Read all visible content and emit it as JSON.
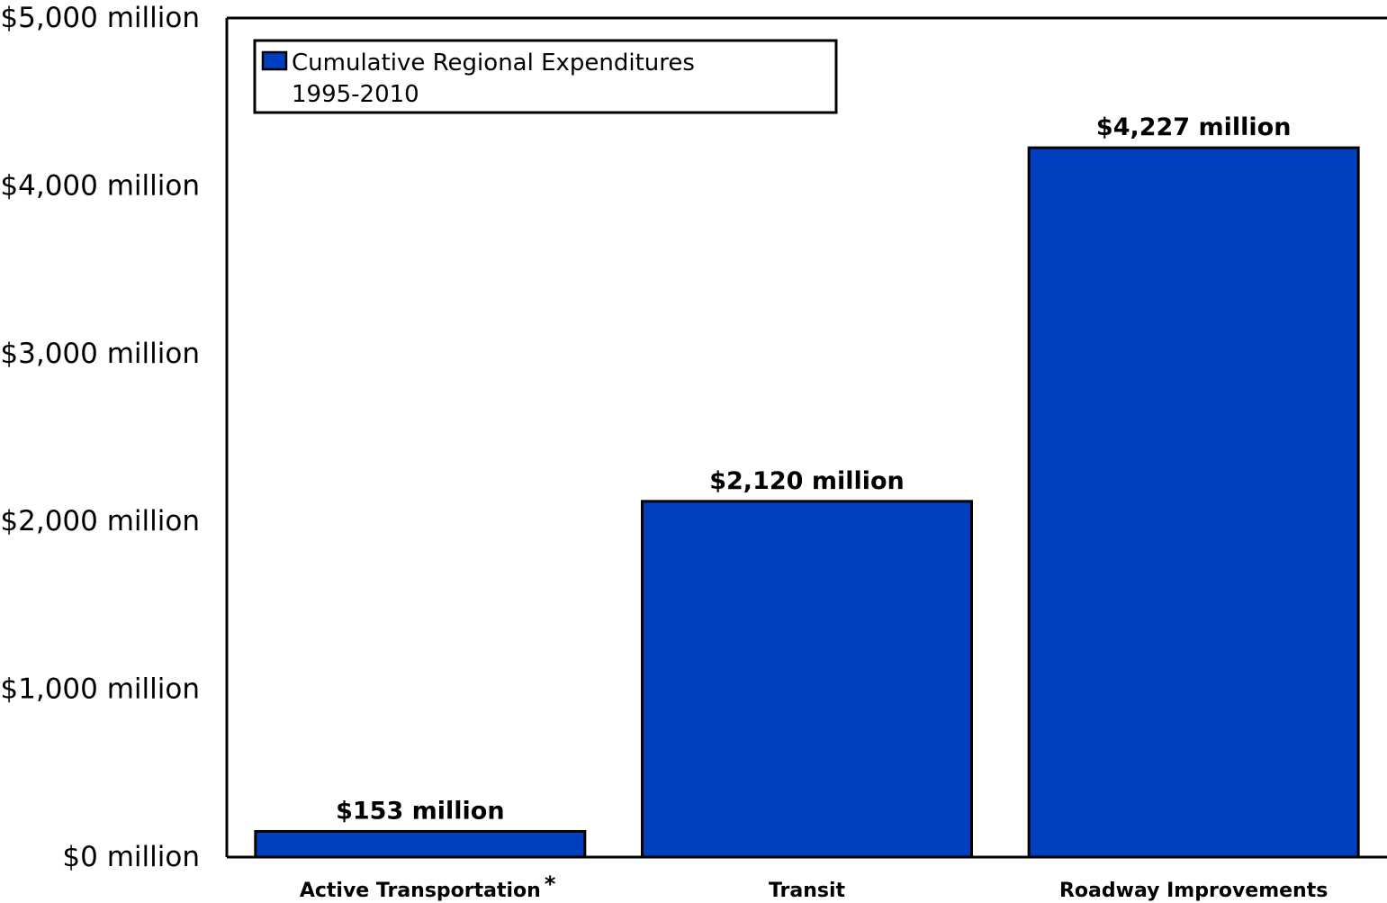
{
  "chart_data": {
    "type": "bar",
    "categories": [
      "Active Transportation",
      "Transit",
      "Roadway Improvements"
    ],
    "category_footnote_marks": [
      "*",
      "",
      ""
    ],
    "series": [
      {
        "name": "Cumulative Regional Expenditures 1995-2010",
        "values": [
          153,
          2120,
          4227
        ],
        "color": "#0040C0"
      }
    ],
    "data_labels": [
      "$153 million",
      "$2,120 million",
      "$4,227 million"
    ],
    "y_ticks": [
      0,
      1000,
      2000,
      3000,
      4000,
      5000
    ],
    "y_tick_labels": [
      "$0 million",
      "$1,000 million",
      "$2,000 million",
      "$3,000 million",
      "$4,000 million",
      "$5,000 million"
    ],
    "ylim": [
      0,
      5000
    ],
    "title": "",
    "xlabel": "",
    "ylabel": "",
    "grid": false,
    "legend": {
      "placement": "top-left",
      "lines": [
        "Cumulative Regional Expenditures",
        "1995-2010"
      ]
    }
  }
}
